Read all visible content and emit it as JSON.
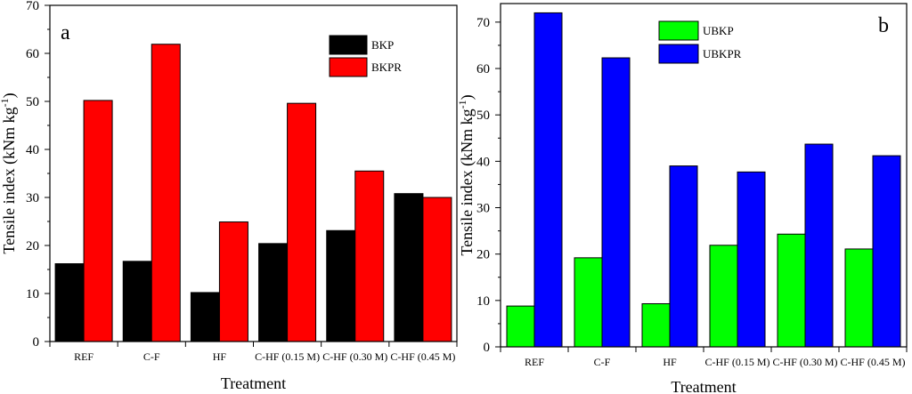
{
  "chart_data": [
    {
      "type": "bar",
      "panel_label": "a",
      "categories": [
        "REF",
        "C-F",
        "HF",
        "C-HF (0.15 M)",
        "C-HF (0.30 M)",
        "C-HF (0.45 M)"
      ],
      "series": [
        {
          "name": "BKP",
          "color": "#000000",
          "values": [
            16.2,
            16.7,
            10.2,
            20.4,
            23.1,
            30.8
          ]
        },
        {
          "name": "BKPR",
          "color": "#ff0000",
          "values": [
            50.2,
            61.9,
            24.9,
            49.6,
            35.5,
            30.0
          ]
        }
      ],
      "xlabel": "Treatment",
      "ylabel": "Tensile index (kNm kg",
      "ylabel_sup": "-1",
      "ylabel_end": ")",
      "ylim": [
        0,
        70
      ],
      "yticks": [
        "0",
        "10",
        "20",
        "30",
        "40",
        "50",
        "60",
        "70"
      ],
      "legend_position": "top-right"
    },
    {
      "type": "bar",
      "panel_label": "b",
      "categories": [
        "REF",
        "C-F",
        "HF",
        "C-HF (0.15 M)",
        "C-HF (0.30 M)",
        "C-HF (0.45 M)"
      ],
      "series": [
        {
          "name": "UBKP",
          "color": "#00ff00",
          "values": [
            8.8,
            19.2,
            9.3,
            21.9,
            24.3,
            21.1
          ]
        },
        {
          "name": "UBKPR",
          "color": "#0000ff",
          "values": [
            72.0,
            62.3,
            39.0,
            37.7,
            43.7,
            41.2
          ]
        }
      ],
      "xlabel": "Treatment",
      "ylabel": "Tensile index (kNm kg",
      "ylabel_sup": "-1",
      "ylabel_end": ")",
      "ylim": [
        0,
        74
      ],
      "yticks": [
        "0",
        "10",
        "20",
        "30",
        "40",
        "50",
        "60",
        "70"
      ],
      "legend_position": "top-left"
    }
  ]
}
